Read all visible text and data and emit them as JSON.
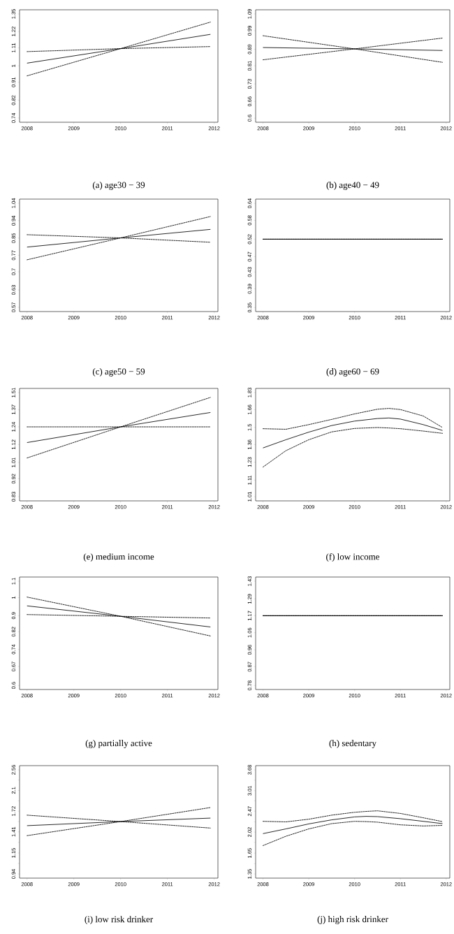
{
  "chart_data": [
    {
      "type": "line",
      "annotations": [
        "(a) age30 − 39"
      ],
      "x": [
        2008,
        2010,
        2011.92
      ],
      "log": true,
      "xlim": [
        2007.84,
        2012.08
      ],
      "ylim": [
        0.722,
        1.383
      ],
      "xticks": [
        2008,
        2009,
        2010,
        2011,
        2012
      ],
      "yticks": [
        0.74,
        0.82,
        0.91,
        1,
        1.11,
        1.22,
        1.35
      ],
      "series": [
        {
          "color": "#000000",
          "line_style": "solid",
          "values": [
            1.016,
            1.105,
            1.2
          ]
        },
        {
          "color": "#000000",
          "line_style": "dashed",
          "values": [
            0.944,
            1.105,
            1.288
          ]
        },
        {
          "color": "#000000",
          "line_style": "dashed",
          "values": [
            1.086,
            1.105,
            1.118
          ]
        }
      ]
    },
    {
      "type": "line",
      "annotations": [
        "(b) age40 − 49"
      ],
      "x": [
        2008,
        2010,
        2011.92
      ],
      "log": true,
      "xlim": [
        2007.84,
        2012.08
      ],
      "ylim": [
        0.586,
        1.116
      ],
      "xticks": [
        2008,
        2009,
        2010,
        2011,
        2012
      ],
      "yticks": [
        0.6,
        0.66,
        0.73,
        0.81,
        0.89,
        0.99,
        1.09
      ],
      "series": [
        {
          "color": "#000000",
          "line_style": "solid",
          "values": [
            0.899,
            0.892,
            0.884
          ]
        },
        {
          "color": "#000000",
          "line_style": "dashed",
          "values": [
            0.838,
            0.892,
            0.949
          ]
        },
        {
          "color": "#000000",
          "line_style": "dashed",
          "values": [
            0.962,
            0.892,
            0.826
          ]
        }
      ]
    },
    {
      "type": "line",
      "annotations": [
        "(c) age50 − 59"
      ],
      "x": [
        2008,
        2010,
        2011.92
      ],
      "log": true,
      "xlim": [
        2007.84,
        2012.08
      ],
      "ylim": [
        0.556,
        1.065
      ],
      "xticks": [
        2008,
        2009,
        2010,
        2011,
        2012
      ],
      "yticks": [
        0.57,
        0.63,
        0.7,
        0.77,
        0.85,
        0.94,
        1.04
      ],
      "series": [
        {
          "color": "#000000",
          "line_style": "solid",
          "values": [
            0.807,
            0.851,
            0.894
          ]
        },
        {
          "color": "#000000",
          "line_style": "dashed",
          "values": [
            0.75,
            0.851,
            0.963
          ]
        },
        {
          "color": "#000000",
          "line_style": "dashed",
          "values": [
            0.867,
            0.851,
            0.83
          ]
        }
      ]
    },
    {
      "type": "line",
      "annotations": [
        "(d) age60 − 69"
      ],
      "x": [
        2008,
        2010,
        2011.92
      ],
      "log": true,
      "xlim": [
        2007.84,
        2012.08
      ],
      "ylim": [
        0.342,
        0.656
      ],
      "xticks": [
        2008,
        2009,
        2010,
        2011,
        2012
      ],
      "yticks": [
        0.35,
        0.39,
        0.43,
        0.47,
        0.52,
        0.58,
        0.64
      ],
      "series": [
        {
          "color": "#000000",
          "line_style": "solid",
          "values": [
            0.52,
            0.52,
            0.52
          ]
        },
        {
          "color": "#000000",
          "line_style": "dashed",
          "values": [
            0.52,
            0.52,
            0.52
          ]
        },
        {
          "color": "#000000",
          "line_style": "dashed",
          "values": [
            0.52,
            0.52,
            0.52
          ]
        }
      ]
    },
    {
      "type": "line",
      "annotations": [
        "(e) medium income"
      ],
      "x": [
        2008,
        2010,
        2011.92
      ],
      "log": true,
      "xlim": [
        2007.84,
        2012.08
      ],
      "ylim": [
        0.81,
        1.547
      ],
      "xticks": [
        2008,
        2009,
        2010,
        2011,
        2012
      ],
      "yticks": [
        0.83,
        0.92,
        1.01,
        1.12,
        1.24,
        1.37,
        1.51
      ],
      "series": [
        {
          "color": "#000000",
          "line_style": "solid",
          "values": [
            1.133,
            1.24,
            1.347
          ]
        },
        {
          "color": "#000000",
          "line_style": "dashed",
          "values": [
            1.037,
            1.24,
            1.469
          ]
        },
        {
          "color": "#000000",
          "line_style": "dashed",
          "values": [
            1.24,
            1.24,
            1.24
          ]
        }
      ]
    },
    {
      "type": "line",
      "annotations": [
        "(f) low income"
      ],
      "x": [
        2008,
        2008.5,
        2009,
        2009.5,
        2010,
        2010.5,
        2010.75,
        2011,
        2011.5,
        2011.92
      ],
      "log": true,
      "xlim": [
        2007.84,
        2012.08
      ],
      "ylim": [
        0.986,
        1.874
      ],
      "xticks": [
        2008,
        2009,
        2010,
        2011,
        2012
      ],
      "yticks": [
        1.01,
        1.11,
        1.23,
        1.36,
        1.5,
        1.66,
        1.83
      ],
      "series": [
        {
          "color": "#000000",
          "line_style": "solid",
          "values": [
            1.334,
            1.398,
            1.46,
            1.516,
            1.555,
            1.578,
            1.583,
            1.573,
            1.524,
            1.474
          ]
        },
        {
          "color": "#000000",
          "line_style": "dashed",
          "values": [
            1.489,
            1.484,
            1.524,
            1.57,
            1.62,
            1.664,
            1.672,
            1.661,
            1.601,
            1.499
          ]
        },
        {
          "color": "#000000",
          "line_style": "dashed",
          "values": [
            1.196,
            1.313,
            1.398,
            1.462,
            1.491,
            1.499,
            1.495,
            1.489,
            1.469,
            1.45
          ]
        }
      ]
    },
    {
      "type": "line",
      "annotations": [
        "(g) partially active"
      ],
      "x": [
        2008,
        2010,
        2011.92
      ],
      "log": true,
      "xlim": [
        2007.84,
        2012.08
      ],
      "ylim": [
        0.586,
        1.127
      ],
      "xticks": [
        2008,
        2009,
        2010,
        2011,
        2012
      ],
      "yticks": [
        0.6,
        0.67,
        0.74,
        0.82,
        0.9,
        1,
        1.1
      ],
      "series": [
        {
          "color": "#000000",
          "line_style": "solid",
          "values": [
            0.953,
            0.897,
            0.843
          ]
        },
        {
          "color": "#000000",
          "line_style": "dashed",
          "values": [
            1.003,
            0.897,
            0.8
          ]
        },
        {
          "color": "#000000",
          "line_style": "dashed",
          "values": [
            0.906,
            0.897,
            0.888
          ]
        }
      ]
    },
    {
      "type": "line",
      "annotations": [
        "(h) sedentary"
      ],
      "x": [
        2008,
        2010,
        2011.92
      ],
      "log": true,
      "xlim": [
        2007.84,
        2012.08
      ],
      "ylim": [
        0.762,
        1.465
      ],
      "xticks": [
        2008,
        2009,
        2010,
        2011,
        2012
      ],
      "yticks": [
        0.78,
        0.87,
        0.96,
        1.06,
        1.17,
        1.29,
        1.43
      ],
      "series": [
        {
          "color": "#000000",
          "line_style": "solid",
          "values": [
            1.17,
            1.17,
            1.17
          ]
        },
        {
          "color": "#000000",
          "line_style": "dashed",
          "values": [
            1.17,
            1.17,
            1.17
          ]
        },
        {
          "color": "#000000",
          "line_style": "dashed",
          "values": [
            1.17,
            1.17,
            1.17
          ]
        }
      ]
    },
    {
      "type": "line",
      "annotations": [
        "(i) low risk drinker"
      ],
      "x": [
        2008,
        2010,
        2011.92
      ],
      "log": true,
      "xlim": [
        2007.84,
        2012.08
      ],
      "ylim": [
        0.903,
        2.665
      ],
      "xticks": [
        2008,
        2009,
        2010,
        2011,
        2012
      ],
      "yticks": [
        0.94,
        {
          "value": 1.04,
          "label": null
        },
        1.15,
        {
          "value": 1.273,
          "label": null
        },
        1.41,
        {
          "value": 1.557,
          "label": null
        },
        1.72,
        {
          "value": 1.9,
          "label": null
        },
        2.1,
        {
          "value": 2.319,
          "label": null
        },
        2.56
      ],
      "series": [
        {
          "color": "#000000",
          "line_style": "solid",
          "values": [
            1.496,
            1.556,
            1.609
          ]
        },
        {
          "color": "#000000",
          "line_style": "dashed",
          "values": [
            1.359,
            1.556,
            1.781
          ]
        },
        {
          "color": "#000000",
          "line_style": "dashed",
          "values": [
            1.655,
            1.556,
            1.462
          ]
        }
      ]
    },
    {
      "type": "line",
      "annotations": [
        "(j) high risk drinker"
      ],
      "x": [
        2008,
        2008.5,
        2009,
        2009.5,
        2010,
        2010.25,
        2010.5,
        2011,
        2011.5,
        2011.92
      ],
      "log": true,
      "xlim": [
        2007.84,
        2012.08
      ],
      "ylim": [
        1.297,
        3.831
      ],
      "xticks": [
        2008,
        2009,
        2010,
        2011,
        2012
      ],
      "yticks": [
        1.35,
        {
          "value": 1.49,
          "label": null
        },
        1.65,
        {
          "value": 1.83,
          "label": null
        },
        2.02,
        {
          "value": 2.23,
          "label": null
        },
        2.47,
        {
          "value": 2.73,
          "label": null
        },
        3.01,
        {
          "value": 3.33,
          "label": null
        },
        3.68
      ],
      "series": [
        {
          "color": "#000000",
          "line_style": "solid",
          "values": [
            1.991,
            2.083,
            2.186,
            2.273,
            2.338,
            2.351,
            2.345,
            2.299,
            2.241,
            2.192
          ]
        },
        {
          "color": "#000000",
          "line_style": "dashed",
          "values": [
            2.241,
            2.229,
            2.287,
            2.378,
            2.445,
            2.465,
            2.48,
            2.418,
            2.319,
            2.235
          ]
        },
        {
          "color": "#000000",
          "line_style": "dashed",
          "values": [
            1.774,
            1.941,
            2.083,
            2.192,
            2.241,
            2.235,
            2.223,
            2.167,
            2.143,
            2.155
          ]
        }
      ]
    }
  ]
}
